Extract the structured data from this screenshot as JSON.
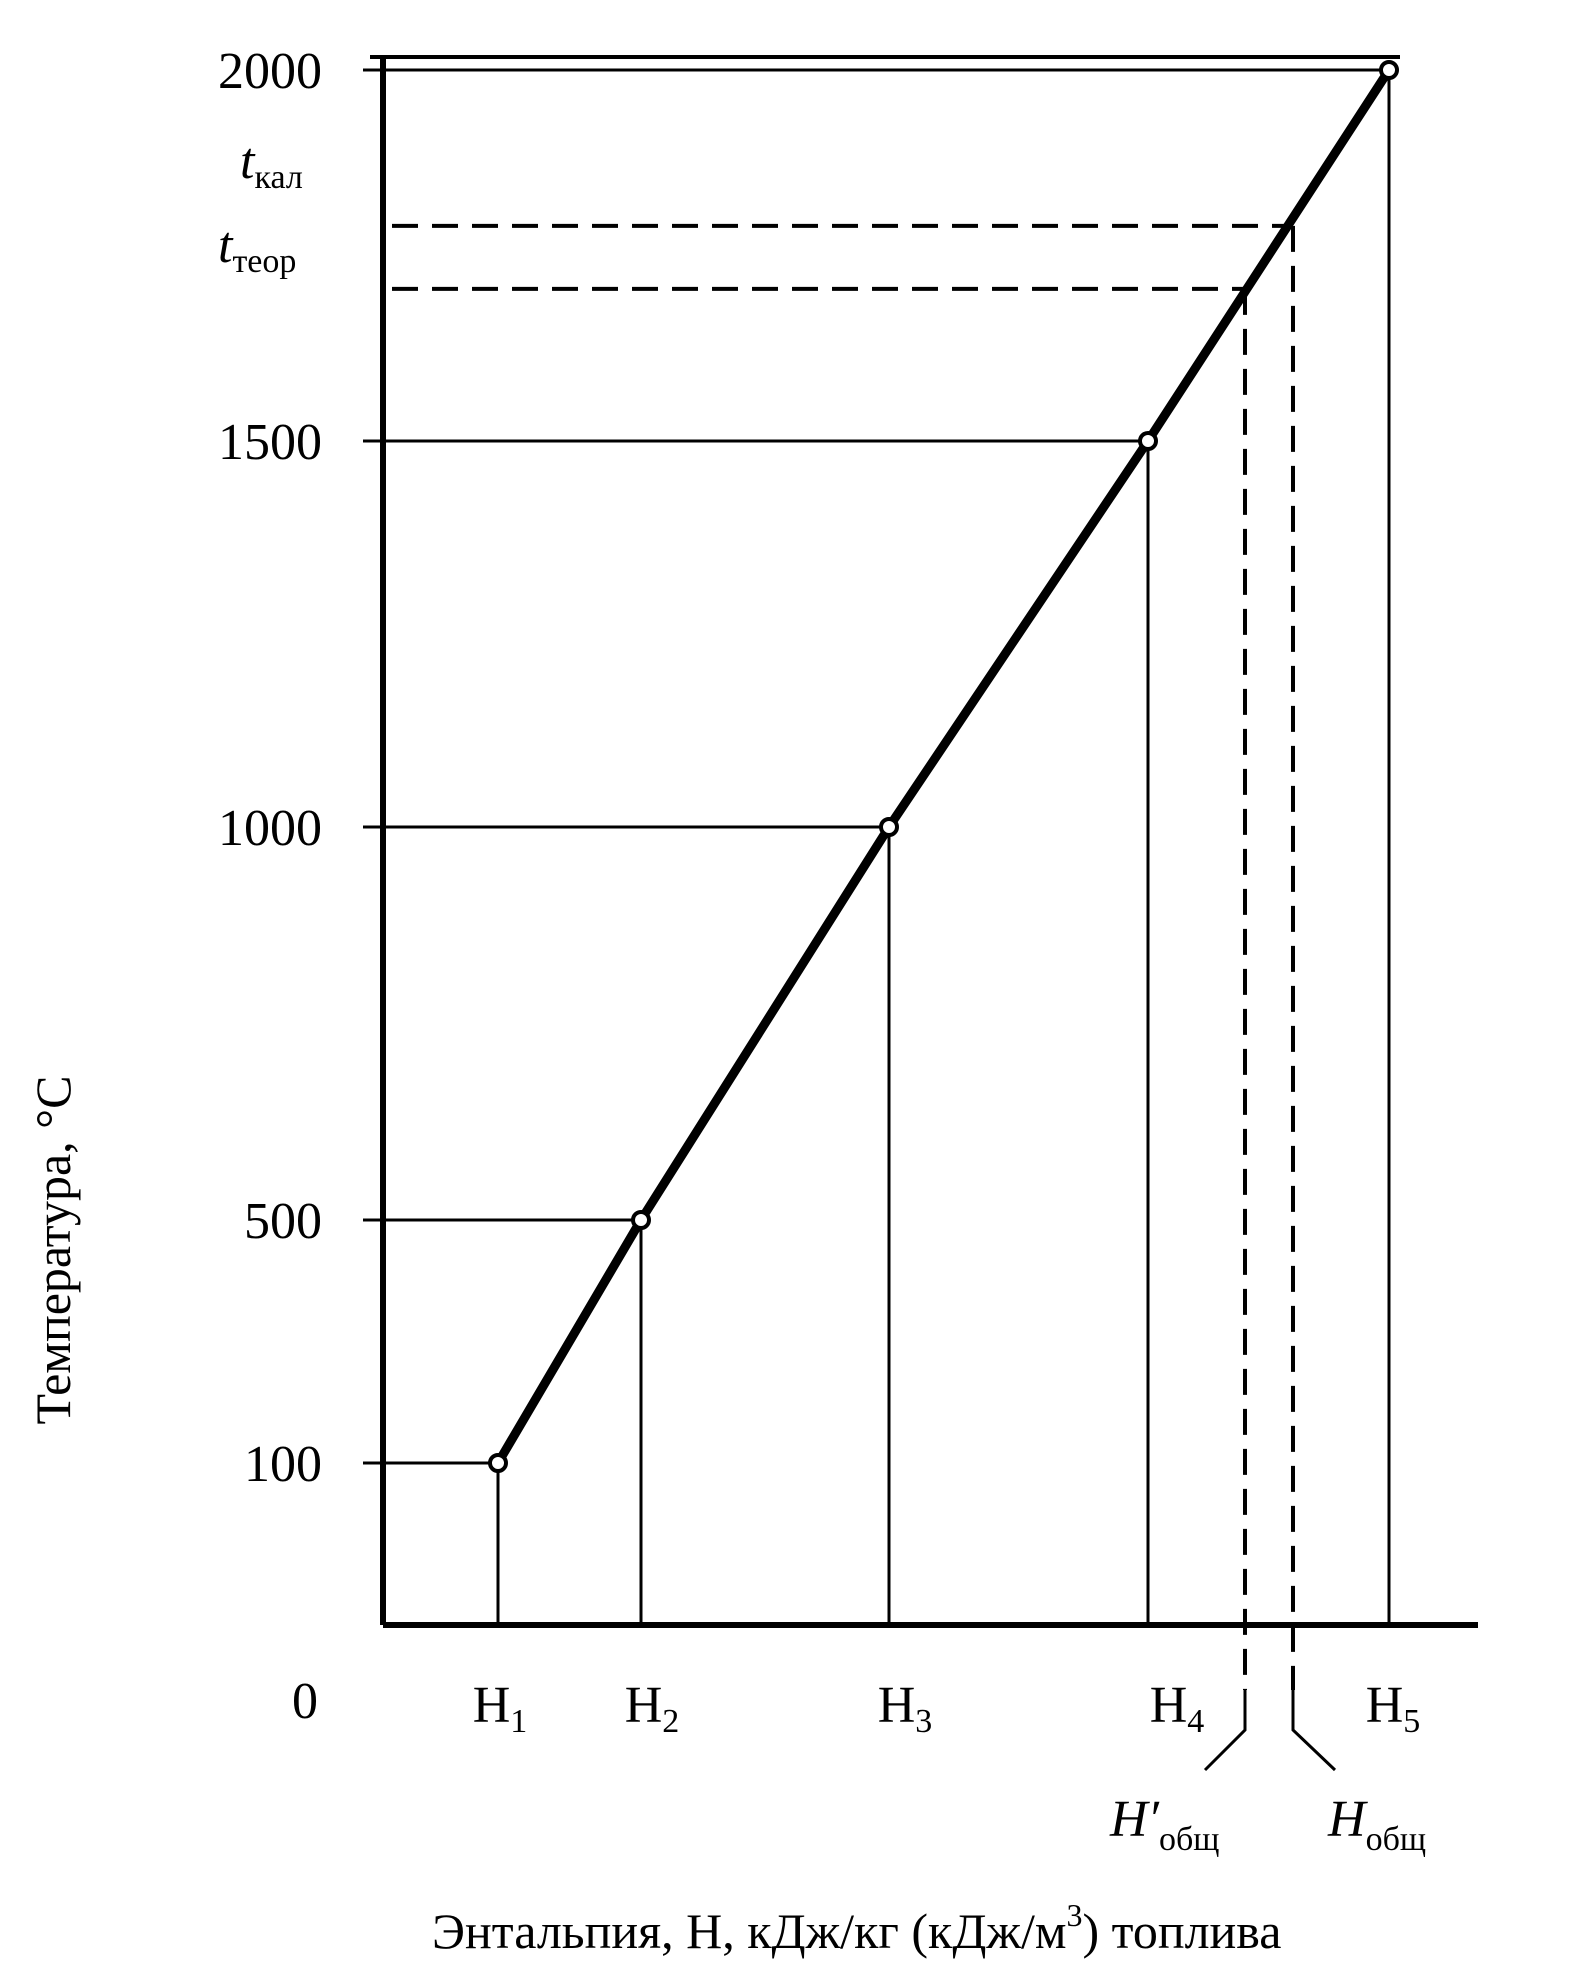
{
  "chart_data": {
    "type": "line",
    "xlabel": "Энтальпия, H, кДж/кг (кДж/м³) топлива",
    "xlabel_parts": {
      "main": "Энтальпия, H, кДж/кг (кДж/м",
      "sup": "3",
      "tail": ") топлива"
    },
    "ylabel": "Температура, °С",
    "ylim": [
      0,
      2000
    ],
    "origin_label": "0",
    "y_ticks": [
      {
        "value": 100,
        "label": "100"
      },
      {
        "value": 500,
        "label": "500"
      },
      {
        "value": 1000,
        "label": "1000"
      },
      {
        "value": 1500,
        "label": "1500"
      },
      {
        "value": 2000,
        "label": "2000"
      }
    ],
    "x_points": [
      {
        "label": "H",
        "sub": "1",
        "y": 100
      },
      {
        "label": "H",
        "sub": "2",
        "y": 500
      },
      {
        "label": "H",
        "sub": "3",
        "y": 1000
      },
      {
        "label": "H",
        "sub": "4",
        "y": 1500
      },
      {
        "label": "H",
        "sub": "5",
        "y": 2000
      }
    ],
    "reference_temps": [
      {
        "label": "t",
        "sub": "кал",
        "y": 1790
      },
      {
        "label": "t",
        "sub": "теор",
        "y": 1705
      }
    ],
    "reference_enthalpies": [
      {
        "label": "H′",
        "sub": "общ"
      },
      {
        "label": "H",
        "sub": "общ"
      }
    ],
    "grid": false,
    "legend": "none"
  }
}
